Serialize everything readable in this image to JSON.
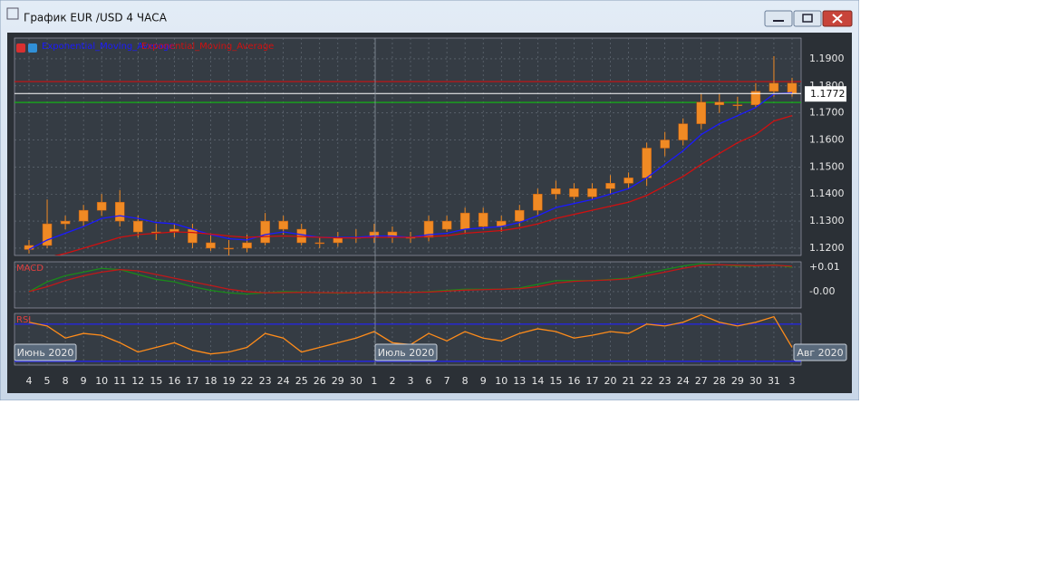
{
  "window": {
    "title": "График EUR /USD  4 ЧАСА"
  },
  "chart_data": [
    {
      "type": "candlestick",
      "x": [
        "4",
        "5",
        "8",
        "9",
        "10",
        "11",
        "12",
        "15",
        "16",
        "17",
        "18",
        "19",
        "22",
        "23",
        "24",
        "25",
        "26",
        "29",
        "30",
        "1",
        "2",
        "3",
        "6",
        "7",
        "8",
        "9",
        "10",
        "13",
        "14",
        "15",
        "16",
        "17",
        "20",
        "21",
        "22",
        "23",
        "24",
        "27",
        "28",
        "29",
        "30",
        "31",
        "3"
      ],
      "month_labels": [
        "Июнь 2020",
        "Июль 2020",
        "Авг 2020"
      ],
      "open": [
        1.1195,
        1.121,
        1.129,
        1.13,
        1.134,
        1.137,
        1.13,
        1.126,
        1.126,
        1.127,
        1.122,
        1.12,
        1.12,
        1.122,
        1.13,
        1.127,
        1.122,
        1.122,
        1.124,
        1.124,
        1.126,
        1.124,
        1.124,
        1.13,
        1.127,
        1.133,
        1.128,
        1.13,
        1.134,
        1.14,
        1.142,
        1.139,
        1.142,
        1.144,
        1.146,
        1.157,
        1.16,
        1.166,
        1.174,
        1.173,
        1.173,
        1.178,
        1.181
      ],
      "high": [
        1.123,
        1.138,
        1.132,
        1.136,
        1.14,
        1.1415,
        1.132,
        1.129,
        1.129,
        1.129,
        1.125,
        1.123,
        1.125,
        1.133,
        1.132,
        1.129,
        1.124,
        1.126,
        1.127,
        1.129,
        1.128,
        1.126,
        1.132,
        1.132,
        1.135,
        1.135,
        1.132,
        1.136,
        1.142,
        1.145,
        1.144,
        1.144,
        1.147,
        1.148,
        1.159,
        1.163,
        1.168,
        1.177,
        1.177,
        1.176,
        1.181,
        1.191,
        1.183
      ],
      "low": [
        1.118,
        1.12,
        1.127,
        1.128,
        1.132,
        1.128,
        1.124,
        1.123,
        1.124,
        1.12,
        1.119,
        1.117,
        1.1185,
        1.121,
        1.125,
        1.121,
        1.12,
        1.1205,
        1.122,
        1.122,
        1.122,
        1.122,
        1.1225,
        1.126,
        1.1255,
        1.127,
        1.126,
        1.128,
        1.132,
        1.138,
        1.138,
        1.138,
        1.14,
        1.142,
        1.143,
        1.154,
        1.158,
        1.164,
        1.17,
        1.171,
        1.172,
        1.176,
        1.176
      ],
      "close": [
        1.121,
        1.129,
        1.13,
        1.134,
        1.137,
        1.13,
        1.126,
        1.126,
        1.127,
        1.122,
        1.12,
        1.12,
        1.122,
        1.13,
        1.127,
        1.122,
        1.122,
        1.124,
        1.124,
        1.126,
        1.124,
        1.124,
        1.13,
        1.127,
        1.133,
        1.128,
        1.13,
        1.134,
        1.14,
        1.142,
        1.139,
        1.142,
        1.144,
        1.146,
        1.157,
        1.16,
        1.166,
        1.174,
        1.173,
        1.173,
        1.178,
        1.181,
        1.1772
      ],
      "candle_color": "#f08a24",
      "series": [
        {
          "name": "Exponential_Moving_Average",
          "color": "#1a1aff",
          "values": [
            1.1195,
            1.123,
            1.1255,
            1.128,
            1.131,
            1.132,
            1.131,
            1.1295,
            1.129,
            1.127,
            1.125,
            1.1235,
            1.123,
            1.125,
            1.126,
            1.125,
            1.124,
            1.124,
            1.124,
            1.1245,
            1.1245,
            1.124,
            1.125,
            1.1255,
            1.127,
            1.1275,
            1.128,
            1.1295,
            1.132,
            1.135,
            1.1365,
            1.138,
            1.14,
            1.142,
            1.146,
            1.151,
            1.156,
            1.162,
            1.166,
            1.169,
            1.172,
            1.177,
            1.1775
          ]
        },
        {
          "name": "Exponential_Moving_Average",
          "color": "#d01010",
          "values": [
            1.115,
            1.1165,
            1.118,
            1.12,
            1.122,
            1.124,
            1.125,
            1.1255,
            1.126,
            1.1258,
            1.1252,
            1.1245,
            1.124,
            1.1243,
            1.1245,
            1.1243,
            1.124,
            1.1238,
            1.1238,
            1.124,
            1.124,
            1.124,
            1.1243,
            1.1246,
            1.1255,
            1.126,
            1.1265,
            1.1275,
            1.129,
            1.131,
            1.1325,
            1.134,
            1.1355,
            1.137,
            1.1395,
            1.143,
            1.1465,
            1.151,
            1.155,
            1.159,
            1.162,
            1.167,
            1.169
          ]
        }
      ],
      "levels": [
        {
          "value": 1.1816,
          "color": "#d01010"
        },
        {
          "value": 1.1739,
          "color": "#10c010"
        }
      ],
      "last_price": 1.1772,
      "ylim": [
        1.1173,
        1.1977
      ],
      "yticks": [
        {
          "value": 1.19,
          "label": "1.1900"
        },
        {
          "value": 1.18,
          "label": "1.1800"
        },
        {
          "value": 1.17,
          "label": "1.1700"
        },
        {
          "value": 1.16,
          "label": "1.1600"
        },
        {
          "value": 1.15,
          "label": "1.1500"
        },
        {
          "value": 1.14,
          "label": "1.1400"
        },
        {
          "value": 1.13,
          "label": "1.1300"
        },
        {
          "value": 1.12,
          "label": "1.1200"
        }
      ],
      "grid": true
    },
    {
      "type": "line",
      "title": "MACD",
      "series": [
        {
          "color": "#1a8a1a",
          "values": [
            0.0,
            0.004,
            0.0065,
            0.008,
            0.0095,
            0.009,
            0.007,
            0.005,
            0.004,
            0.002,
            0.0005,
            -0.0005,
            -0.001,
            -0.0005,
            0.0,
            -0.0002,
            -0.0005,
            -0.0006,
            -0.0005,
            -0.0003,
            -0.0003,
            -0.0004,
            0.0,
            0.0005,
            0.001,
            0.001,
            0.001,
            0.0015,
            0.003,
            0.0045,
            0.0045,
            0.0045,
            0.005,
            0.0055,
            0.0075,
            0.009,
            0.0105,
            0.0115,
            0.011,
            0.0105,
            0.0105,
            0.011,
            0.01
          ]
        },
        {
          "color": "#c01818",
          "values": [
            0.0,
            0.002,
            0.0045,
            0.0065,
            0.008,
            0.009,
            0.0085,
            0.007,
            0.0055,
            0.004,
            0.0025,
            0.001,
            0.0,
            -0.0005,
            -0.0004,
            -0.0003,
            -0.0004,
            -0.0005,
            -0.0005,
            -0.0004,
            -0.0003,
            -0.0003,
            -0.0002,
            0.0002,
            0.0006,
            0.0008,
            0.001,
            0.0012,
            0.002,
            0.0035,
            0.0042,
            0.0045,
            0.0048,
            0.0052,
            0.0065,
            0.008,
            0.0095,
            0.0108,
            0.011,
            0.0108,
            0.0106,
            0.0108,
            0.0104
          ]
        }
      ],
      "ylim": [
        -0.0067,
        0.0122
      ],
      "yticks": [
        {
          "value": 0.01,
          "label": "+0.01"
        },
        {
          "value": 0,
          "label": "-0.00"
        }
      ],
      "grid": true
    },
    {
      "type": "line",
      "title": "RSI",
      "series": [
        {
          "color": "#ff8c1a",
          "values": [
            72,
            68,
            55,
            60,
            58,
            50,
            40,
            45,
            50,
            42,
            38,
            40,
            45,
            60,
            55,
            40,
            45,
            50,
            55,
            62,
            50,
            48,
            60,
            52,
            62,
            55,
            52,
            60,
            65,
            62,
            55,
            58,
            62,
            60,
            70,
            68,
            72,
            80,
            72,
            68,
            72,
            78,
            45
          ]
        }
      ],
      "levels": [
        {
          "value": 70,
          "color": "#2222ff"
        },
        {
          "value": 30,
          "color": "#2222ff"
        }
      ],
      "ylim": [
        26,
        81.5
      ]
    }
  ]
}
